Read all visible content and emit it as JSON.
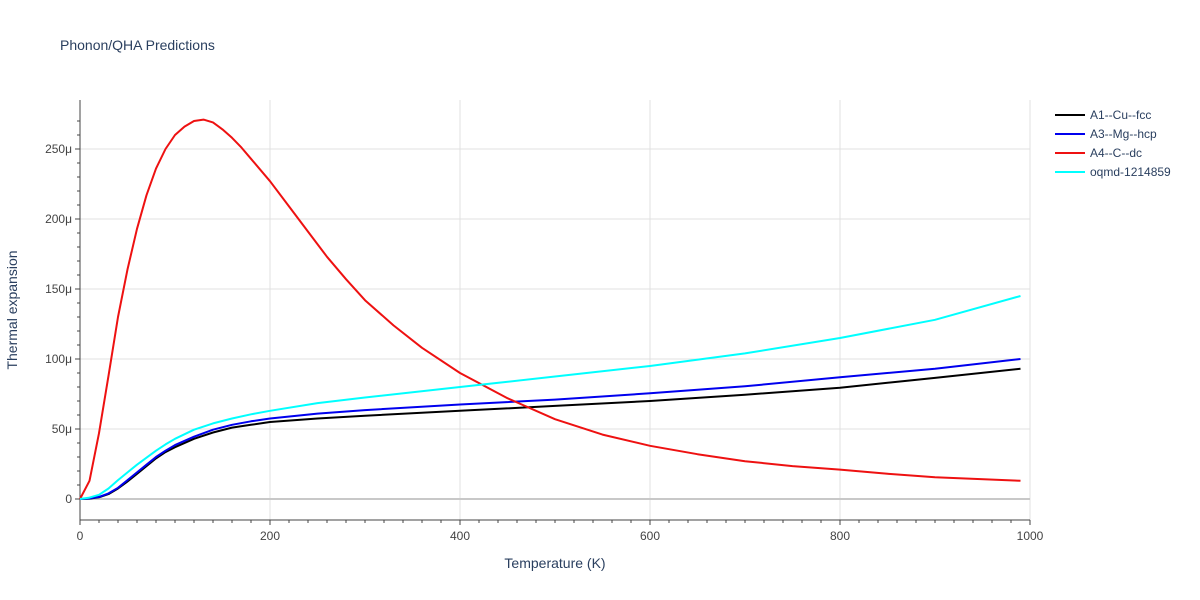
{
  "chart_data": {
    "type": "line",
    "title": "Phonon/QHA Predictions",
    "xlabel": "Temperature (K)",
    "ylabel": "Thermal expansion",
    "xlim": [
      0,
      1000
    ],
    "ylim": [
      -1.5e-05,
      0.000285
    ],
    "xticks": [
      0,
      200,
      400,
      600,
      800,
      1000
    ],
    "xtick_labels": [
      "0",
      "200",
      "400",
      "600",
      "800",
      "1000"
    ],
    "yticks": [
      0,
      5e-05,
      0.0001,
      0.00015,
      0.0002,
      0.00025
    ],
    "ytick_labels": [
      "0",
      "50μ",
      "100μ",
      "150μ",
      "200μ",
      "250μ"
    ],
    "grid": true,
    "legend_position": "top-right",
    "series": [
      {
        "name": "A1--Cu--fcc",
        "color": "#000000",
        "x": [
          0,
          10,
          20,
          30,
          40,
          50,
          60,
          70,
          80,
          90,
          100,
          120,
          140,
          160,
          180,
          200,
          250,
          300,
          400,
          500,
          600,
          700,
          800,
          900,
          990
        ],
        "y": [
          0,
          3e-07,
          1.2e-06,
          3.5e-06,
          7.5e-06,
          1.25e-05,
          1.8e-05,
          2.35e-05,
          2.9e-05,
          3.35e-05,
          3.7e-05,
          4.3e-05,
          4.75e-05,
          5.1e-05,
          5.3e-05,
          5.5e-05,
          5.75e-05,
          5.95e-05,
          6.3e-05,
          6.65e-05,
          7e-05,
          7.45e-05,
          7.95e-05,
          8.65e-05,
          9.3e-05
        ]
      },
      {
        "name": "A3--Mg--hcp",
        "color": "#0000ee",
        "x": [
          0,
          10,
          20,
          30,
          40,
          50,
          60,
          70,
          80,
          90,
          100,
          120,
          140,
          160,
          180,
          200,
          250,
          300,
          400,
          500,
          600,
          700,
          800,
          900,
          990
        ],
        "y": [
          0,
          4e-07,
          1.5e-06,
          4e-06,
          8e-06,
          1.35e-05,
          1.9e-05,
          2.45e-05,
          3e-05,
          3.45e-05,
          3.85e-05,
          4.45e-05,
          4.95e-05,
          5.3e-05,
          5.55e-05,
          5.75e-05,
          6.1e-05,
          6.35e-05,
          6.75e-05,
          7.1e-05,
          7.55e-05,
          8.05e-05,
          8.7e-05,
          9.3e-05,
          0.0001
        ]
      },
      {
        "name": "A4--C--dc",
        "color": "#ee1111",
        "x": [
          0,
          10,
          20,
          30,
          40,
          50,
          60,
          70,
          80,
          90,
          100,
          110,
          120,
          130,
          140,
          150,
          160,
          170,
          180,
          200,
          220,
          240,
          260,
          280,
          300,
          330,
          360,
          400,
          450,
          500,
          550,
          600,
          650,
          700,
          750,
          800,
          850,
          900,
          990
        ],
        "y": [
          0,
          1.3e-05,
          4.7e-05,
          8.8e-05,
          0.00013,
          0.000164,
          0.000193,
          0.000217,
          0.000236,
          0.00025,
          0.00026,
          0.000266,
          0.00027,
          0.000271,
          0.000269,
          0.000264,
          0.000258,
          0.000251,
          0.000243,
          0.000227,
          0.000209,
          0.000191,
          0.000173,
          0.000157,
          0.000142,
          0.000124,
          0.000108,
          9e-05,
          7.2e-05,
          5.7e-05,
          4.6e-05,
          3.8e-05,
          3.2e-05,
          2.7e-05,
          2.35e-05,
          2.1e-05,
          1.8e-05,
          1.55e-05,
          1.3e-05
        ]
      },
      {
        "name": "oqmd-1214859",
        "color": "#00ffff",
        "x": [
          0,
          10,
          20,
          30,
          40,
          50,
          60,
          70,
          80,
          90,
          100,
          120,
          140,
          160,
          180,
          200,
          250,
          300,
          400,
          500,
          600,
          700,
          800,
          900,
          990
        ],
        "y": [
          0,
          1e-06,
          3e-06,
          7.5e-06,
          1.35e-05,
          1.9e-05,
          2.45e-05,
          2.95e-05,
          3.45e-05,
          3.9e-05,
          4.3e-05,
          4.95e-05,
          5.4e-05,
          5.75e-05,
          6.05e-05,
          6.3e-05,
          6.85e-05,
          7.25e-05,
          8e-05,
          8.75e-05,
          9.5e-05,
          0.000104,
          0.000115,
          0.000128,
          0.000145
        ]
      }
    ]
  }
}
